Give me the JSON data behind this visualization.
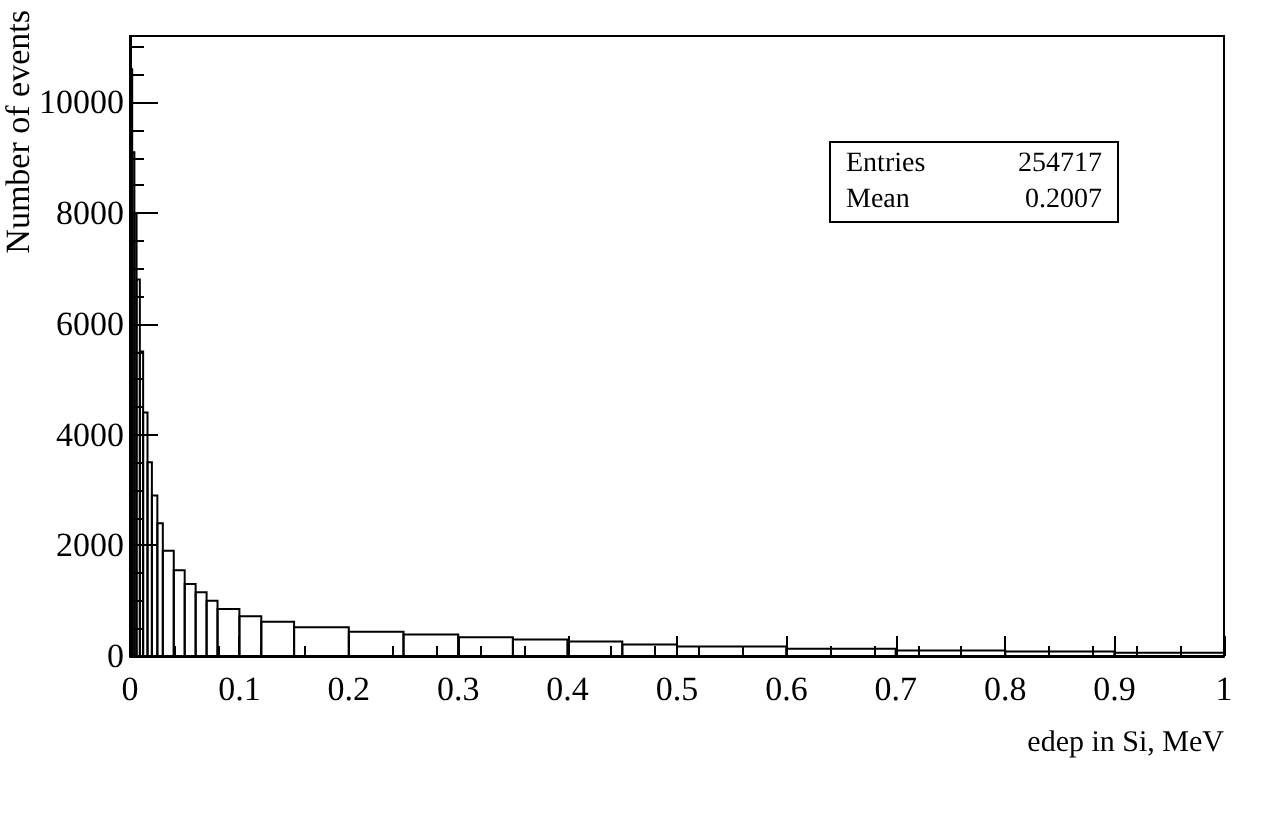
{
  "chart_data": {
    "type": "histogram",
    "xlabel": "edep in Si, MeV",
    "ylabel": "Number of events",
    "bins": [
      0,
      0.002,
      0.004,
      0.006,
      0.009,
      0.012,
      0.016,
      0.02,
      0.025,
      0.03,
      0.04,
      0.05,
      0.06,
      0.07,
      0.08,
      0.1,
      0.12,
      0.15,
      0.2,
      0.25,
      0.3,
      0.35,
      0.4,
      0.45,
      0.5,
      0.6,
      0.7,
      0.8,
      0.9,
      1.0
    ],
    "values": [
      10600,
      9100,
      8000,
      6800,
      5500,
      4400,
      3500,
      2900,
      2400,
      1900,
      1550,
      1300,
      1150,
      1000,
      850,
      720,
      620,
      520,
      440,
      390,
      340,
      300,
      260,
      210,
      170,
      130,
      100,
      80,
      60
    ],
    "color": "#000000",
    "xlim": [
      0,
      1
    ],
    "xticks": [
      0,
      0.1,
      0.2,
      0.3,
      0.4,
      0.5,
      0.6,
      0.7,
      0.8,
      0.9,
      1
    ],
    "ylim": [
      0,
      11200
    ],
    "yticks": [
      0,
      2000,
      4000,
      6000,
      8000,
      10000
    ],
    "annotations": [
      "Entries 254717",
      "Mean 0.2007"
    ],
    "grid": false
  }
}
